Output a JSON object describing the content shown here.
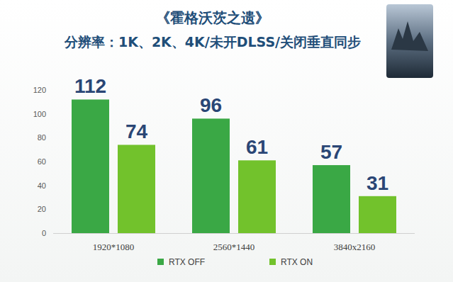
{
  "chart_data": {
    "type": "bar",
    "title": "《霍格沃茨之遗》",
    "subtitle": "分辨率：1K、2K、4K/未开DLSS/关闭垂直同步",
    "categories": [
      "1920*1080",
      "2560*1440",
      "3840x2160"
    ],
    "series": [
      {
        "name": "RTX OFF",
        "color": "#3aa845",
        "values": [
          112,
          96,
          57
        ]
      },
      {
        "name": "RTX ON",
        "color": "#72c22c",
        "values": [
          74,
          61,
          31
        ]
      }
    ],
    "ylim": [
      0,
      120
    ],
    "yticks": [
      0,
      20,
      40,
      60,
      80,
      100,
      120
    ],
    "grid": false,
    "data_labels": true,
    "legend": "bottom"
  }
}
